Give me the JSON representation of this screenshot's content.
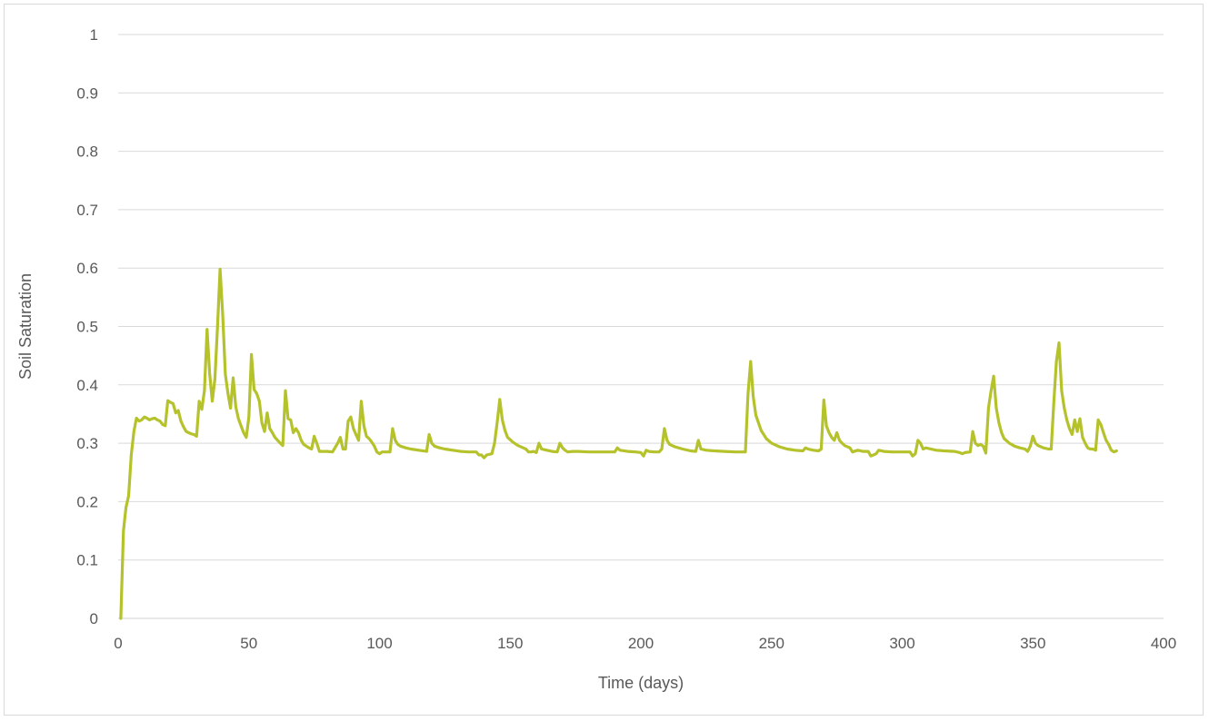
{
  "chart_data": {
    "type": "line",
    "title": "",
    "xlabel": "Time (days)",
    "ylabel": "Soil Saturation",
    "xlim": [
      0,
      400
    ],
    "ylim": [
      0,
      1
    ],
    "x_ticks": [
      "0",
      "50",
      "100",
      "150",
      "200",
      "250",
      "300",
      "350",
      "400"
    ],
    "y_ticks": [
      "0",
      "0.1",
      "0.2",
      "0.3",
      "0.4",
      "0.5",
      "0.6",
      "0.7",
      "0.8",
      "0.9",
      "1"
    ],
    "grid": "horizontal",
    "legend": "none",
    "series": [
      {
        "color": "#b5c22b",
        "points": [
          [
            1,
            0
          ],
          [
            2,
            0.15
          ],
          [
            3,
            0.19
          ],
          [
            4,
            0.21
          ],
          [
            5,
            0.28
          ],
          [
            6,
            0.32
          ],
          [
            7,
            0.343
          ],
          [
            8,
            0.338
          ],
          [
            9,
            0.34
          ],
          [
            10,
            0.345
          ],
          [
            11,
            0.343
          ],
          [
            12,
            0.34
          ],
          [
            13,
            0.342
          ],
          [
            14,
            0.343
          ],
          [
            15,
            0.34
          ],
          [
            16,
            0.338
          ],
          [
            17,
            0.332
          ],
          [
            18,
            0.33
          ],
          [
            19,
            0.373
          ],
          [
            20,
            0.37
          ],
          [
            21,
            0.368
          ],
          [
            22,
            0.352
          ],
          [
            23,
            0.356
          ],
          [
            24,
            0.338
          ],
          [
            25,
            0.328
          ],
          [
            26,
            0.32
          ],
          [
            27,
            0.318
          ],
          [
            28,
            0.316
          ],
          [
            29,
            0.315
          ],
          [
            30,
            0.312
          ],
          [
            31,
            0.372
          ],
          [
            32,
            0.358
          ],
          [
            33,
            0.39
          ],
          [
            34,
            0.495
          ],
          [
            35,
            0.42
          ],
          [
            36,
            0.372
          ],
          [
            37,
            0.41
          ],
          [
            38,
            0.5
          ],
          [
            39,
            0.598
          ],
          [
            40,
            0.52
          ],
          [
            41,
            0.418
          ],
          [
            42,
            0.385
          ],
          [
            43,
            0.36
          ],
          [
            44,
            0.412
          ],
          [
            45,
            0.362
          ],
          [
            46,
            0.342
          ],
          [
            47,
            0.33
          ],
          [
            48,
            0.318
          ],
          [
            49,
            0.31
          ],
          [
            50,
            0.345
          ],
          [
            51,
            0.452
          ],
          [
            52,
            0.392
          ],
          [
            53,
            0.385
          ],
          [
            54,
            0.372
          ],
          [
            55,
            0.335
          ],
          [
            56,
            0.32
          ],
          [
            57,
            0.352
          ],
          [
            58,
            0.325
          ],
          [
            59,
            0.318
          ],
          [
            60,
            0.31
          ],
          [
            61,
            0.305
          ],
          [
            62,
            0.3
          ],
          [
            63,
            0.296
          ],
          [
            64,
            0.39
          ],
          [
            65,
            0.342
          ],
          [
            66,
            0.34
          ],
          [
            67,
            0.318
          ],
          [
            68,
            0.325
          ],
          [
            69,
            0.318
          ],
          [
            70,
            0.305
          ],
          [
            71,
            0.298
          ],
          [
            72,
            0.295
          ],
          [
            73,
            0.292
          ],
          [
            74,
            0.29
          ],
          [
            75,
            0.312
          ],
          [
            76,
            0.3
          ],
          [
            77,
            0.286
          ],
          [
            78,
            0.286
          ],
          [
            80,
            0.286
          ],
          [
            82,
            0.285
          ],
          [
            84,
            0.3
          ],
          [
            85,
            0.31
          ],
          [
            86,
            0.29
          ],
          [
            87,
            0.29
          ],
          [
            88,
            0.338
          ],
          [
            89,
            0.345
          ],
          [
            90,
            0.325
          ],
          [
            91,
            0.315
          ],
          [
            92,
            0.305
          ],
          [
            93,
            0.372
          ],
          [
            94,
            0.33
          ],
          [
            95,
            0.312
          ],
          [
            96,
            0.308
          ],
          [
            97,
            0.302
          ],
          [
            98,
            0.295
          ],
          [
            99,
            0.285
          ],
          [
            100,
            0.282
          ],
          [
            101,
            0.285
          ],
          [
            103,
            0.285
          ],
          [
            104,
            0.285
          ],
          [
            105,
            0.325
          ],
          [
            106,
            0.305
          ],
          [
            107,
            0.298
          ],
          [
            108,
            0.295
          ],
          [
            110,
            0.292
          ],
          [
            112,
            0.29
          ],
          [
            115,
            0.288
          ],
          [
            118,
            0.286
          ],
          [
            119,
            0.315
          ],
          [
            120,
            0.3
          ],
          [
            121,
            0.295
          ],
          [
            123,
            0.292
          ],
          [
            125,
            0.29
          ],
          [
            128,
            0.288
          ],
          [
            131,
            0.286
          ],
          [
            134,
            0.285
          ],
          [
            137,
            0.285
          ],
          [
            138,
            0.28
          ],
          [
            139,
            0.28
          ],
          [
            140,
            0.275
          ],
          [
            141,
            0.28
          ],
          [
            143,
            0.282
          ],
          [
            144,
            0.3
          ],
          [
            145,
            0.335
          ],
          [
            146,
            0.375
          ],
          [
            147,
            0.34
          ],
          [
            148,
            0.322
          ],
          [
            149,
            0.31
          ],
          [
            151,
            0.302
          ],
          [
            153,
            0.296
          ],
          [
            155,
            0.292
          ],
          [
            156,
            0.29
          ],
          [
            157,
            0.285
          ],
          [
            158,
            0.285
          ],
          [
            159,
            0.286
          ],
          [
            160,
            0.284
          ],
          [
            161,
            0.3
          ],
          [
            162,
            0.29
          ],
          [
            164,
            0.288
          ],
          [
            166,
            0.286
          ],
          [
            168,
            0.285
          ],
          [
            169,
            0.3
          ],
          [
            170,
            0.292
          ],
          [
            171,
            0.288
          ],
          [
            172,
            0.285
          ],
          [
            174,
            0.286
          ],
          [
            176,
            0.286
          ],
          [
            180,
            0.285
          ],
          [
            185,
            0.285
          ],
          [
            190,
            0.285
          ],
          [
            191,
            0.292
          ],
          [
            192,
            0.288
          ],
          [
            195,
            0.286
          ],
          [
            198,
            0.285
          ],
          [
            200,
            0.284
          ],
          [
            201,
            0.278
          ],
          [
            202,
            0.288
          ],
          [
            203,
            0.286
          ],
          [
            205,
            0.285
          ],
          [
            207,
            0.285
          ],
          [
            208,
            0.29
          ],
          [
            209,
            0.325
          ],
          [
            210,
            0.305
          ],
          [
            211,
            0.298
          ],
          [
            213,
            0.294
          ],
          [
            216,
            0.29
          ],
          [
            219,
            0.287
          ],
          [
            221,
            0.286
          ],
          [
            222,
            0.305
          ],
          [
            223,
            0.29
          ],
          [
            225,
            0.288
          ],
          [
            228,
            0.287
          ],
          [
            232,
            0.286
          ],
          [
            236,
            0.285
          ],
          [
            240,
            0.285
          ],
          [
            241,
            0.385
          ],
          [
            242,
            0.44
          ],
          [
            243,
            0.38
          ],
          [
            244,
            0.348
          ],
          [
            246,
            0.322
          ],
          [
            248,
            0.308
          ],
          [
            250,
            0.3
          ],
          [
            253,
            0.294
          ],
          [
            256,
            0.29
          ],
          [
            259,
            0.288
          ],
          [
            262,
            0.287
          ],
          [
            263,
            0.292
          ],
          [
            264,
            0.29
          ],
          [
            266,
            0.288
          ],
          [
            268,
            0.287
          ],
          [
            269,
            0.29
          ],
          [
            270,
            0.374
          ],
          [
            271,
            0.33
          ],
          [
            272,
            0.318
          ],
          [
            273,
            0.31
          ],
          [
            274,
            0.305
          ],
          [
            275,
            0.318
          ],
          [
            276,
            0.305
          ],
          [
            277,
            0.3
          ],
          [
            278,
            0.296
          ],
          [
            280,
            0.292
          ],
          [
            281,
            0.285
          ],
          [
            283,
            0.288
          ],
          [
            285,
            0.286
          ],
          [
            287,
            0.286
          ],
          [
            288,
            0.278
          ],
          [
            289,
            0.28
          ],
          [
            290,
            0.282
          ],
          [
            291,
            0.288
          ],
          [
            293,
            0.286
          ],
          [
            296,
            0.285
          ],
          [
            300,
            0.285
          ],
          [
            303,
            0.285
          ],
          [
            304,
            0.278
          ],
          [
            305,
            0.282
          ],
          [
            306,
            0.305
          ],
          [
            307,
            0.3
          ],
          [
            308,
            0.29
          ],
          [
            309,
            0.292
          ],
          [
            311,
            0.29
          ],
          [
            313,
            0.288
          ],
          [
            316,
            0.287
          ],
          [
            320,
            0.286
          ],
          [
            322,
            0.284
          ],
          [
            323,
            0.282
          ],
          [
            324,
            0.284
          ],
          [
            326,
            0.285
          ],
          [
            327,
            0.32
          ],
          [
            328,
            0.3
          ],
          [
            329,
            0.296
          ],
          [
            330,
            0.298
          ],
          [
            331,
            0.295
          ],
          [
            332,
            0.283
          ],
          [
            333,
            0.36
          ],
          [
            334,
            0.39
          ],
          [
            335,
            0.415
          ],
          [
            336,
            0.36
          ],
          [
            337,
            0.335
          ],
          [
            338,
            0.318
          ],
          [
            339,
            0.308
          ],
          [
            341,
            0.3
          ],
          [
            343,
            0.295
          ],
          [
            345,
            0.292
          ],
          [
            347,
            0.29
          ],
          [
            348,
            0.286
          ],
          [
            349,
            0.295
          ],
          [
            350,
            0.312
          ],
          [
            351,
            0.3
          ],
          [
            352,
            0.296
          ],
          [
            354,
            0.292
          ],
          [
            356,
            0.29
          ],
          [
            357,
            0.29
          ],
          [
            358,
            0.37
          ],
          [
            359,
            0.44
          ],
          [
            360,
            0.472
          ],
          [
            361,
            0.39
          ],
          [
            362,
            0.36
          ],
          [
            363,
            0.34
          ],
          [
            364,
            0.325
          ],
          [
            365,
            0.315
          ],
          [
            366,
            0.34
          ],
          [
            367,
            0.32
          ],
          [
            368,
            0.342
          ],
          [
            369,
            0.31
          ],
          [
            370,
            0.3
          ],
          [
            371,
            0.292
          ],
          [
            372,
            0.29
          ],
          [
            373,
            0.29
          ],
          [
            374,
            0.288
          ],
          [
            375,
            0.34
          ],
          [
            376,
            0.332
          ],
          [
            377,
            0.318
          ],
          [
            378,
            0.305
          ],
          [
            379,
            0.298
          ],
          [
            380,
            0.288
          ],
          [
            381,
            0.285
          ],
          [
            382,
            0.287
          ]
        ]
      }
    ]
  }
}
